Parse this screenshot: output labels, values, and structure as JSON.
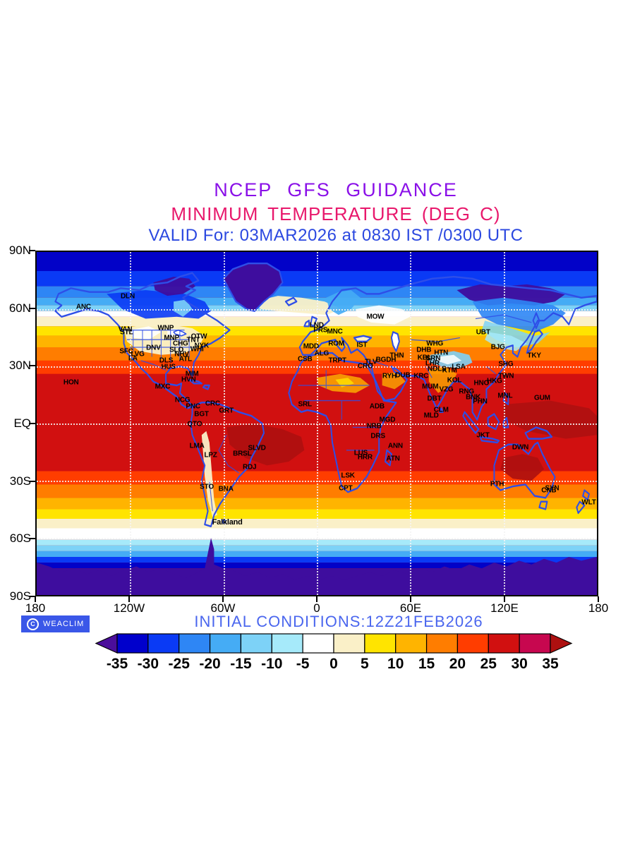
{
  "header": {
    "title": "NCEP GFS GUIDANCE",
    "subtitle": "MINIMUM TEMPERATURE (DEG C)",
    "valid_line": "VALID For: 03MAR2026 at 0830 IST /0300 UTC",
    "title_color": "#8A10E8",
    "subtitle_color": "#E8186C",
    "valid_color": "#2B48E0"
  },
  "map": {
    "lat_ticks": [
      {
        "label": "90N",
        "lat": 90
      },
      {
        "label": "60N",
        "lat": 60
      },
      {
        "label": "30N",
        "lat": 30
      },
      {
        "label": "EQ",
        "lat": 0
      },
      {
        "label": "30S",
        "lat": -30
      },
      {
        "label": "60S",
        "lat": -60
      },
      {
        "label": "90S",
        "lat": -90
      }
    ],
    "lon_ticks": [
      {
        "label": "180",
        "lon": -180
      },
      {
        "label": "120W",
        "lon": -120
      },
      {
        "label": "60W",
        "lon": -60
      },
      {
        "label": "0",
        "lon": 0
      },
      {
        "label": "60E",
        "lon": 60
      },
      {
        "label": "120E",
        "lon": 120
      },
      {
        "label": "180",
        "lon": 180
      }
    ],
    "grid": {
      "lats": [
        60,
        30,
        0,
        -30,
        -60
      ],
      "lons": [
        -120,
        -60,
        0,
        60,
        120
      ]
    },
    "cities": [
      {
        "code": "ANC",
        "lat": 61.2,
        "lon": -149.9
      },
      {
        "code": "DLN",
        "lat": 66.8,
        "lon": -121.5
      },
      {
        "code": "VAN",
        "lat": 49.3,
        "lon": -123.1
      },
      {
        "code": "STL",
        "lat": 47.6,
        "lon": -122.3
      },
      {
        "code": "WNP",
        "lat": 49.9,
        "lon": -97.1
      },
      {
        "code": "MNP",
        "lat": 45.0,
        "lon": -93.3
      },
      {
        "code": "CHG",
        "lat": 41.9,
        "lon": -87.6
      },
      {
        "code": "TNT",
        "lat": 43.7,
        "lon": -79.4
      },
      {
        "code": "OTW",
        "lat": 45.4,
        "lon": -75.7
      },
      {
        "code": "NYK",
        "lat": 40.7,
        "lon": -74.0
      },
      {
        "code": "DNV",
        "lat": 39.7,
        "lon": -105.0
      },
      {
        "code": "SLO",
        "lat": 38.6,
        "lon": -90.2
      },
      {
        "code": "SFC",
        "lat": 37.8,
        "lon": -122.4
      },
      {
        "code": "LVG",
        "lat": 36.2,
        "lon": -115.1
      },
      {
        "code": "LA",
        "lat": 34.1,
        "lon": -118.2
      },
      {
        "code": "DLS",
        "lat": 32.8,
        "lon": -96.8
      },
      {
        "code": "ATL",
        "lat": 33.7,
        "lon": -84.4
      },
      {
        "code": "NHV",
        "lat": 36.2,
        "lon": -86.8
      },
      {
        "code": "WHI",
        "lat": 38.9,
        "lon": -77.0
      },
      {
        "code": "HUS",
        "lat": 29.8,
        "lon": -95.4
      },
      {
        "code": "MIM",
        "lat": 25.8,
        "lon": -80.2
      },
      {
        "code": "HVN",
        "lat": 23.1,
        "lon": -82.4
      },
      {
        "code": "HON",
        "lat": 21.3,
        "lon": -157.9
      },
      {
        "code": "MXC",
        "lat": 19.4,
        "lon": -99.1
      },
      {
        "code": "NCG",
        "lat": 12.1,
        "lon": -86.3
      },
      {
        "code": "PNC",
        "lat": 9.0,
        "lon": -79.5
      },
      {
        "code": "CRC",
        "lat": 10.5,
        "lon": -66.9
      },
      {
        "code": "GRT",
        "lat": 6.8,
        "lon": -58.2
      },
      {
        "code": "BGT",
        "lat": 4.7,
        "lon": -74.1
      },
      {
        "code": "QTO",
        "lat": -0.2,
        "lon": -78.5
      },
      {
        "code": "LMA",
        "lat": -12.0,
        "lon": -77.0
      },
      {
        "code": "LPZ",
        "lat": -16.5,
        "lon": -68.2
      },
      {
        "code": "SLVD",
        "lat": -13.0,
        "lon": -38.5
      },
      {
        "code": "BRSL",
        "lat": -15.8,
        "lon": -47.9
      },
      {
        "code": "RDJ",
        "lat": -22.9,
        "lon": -43.2
      },
      {
        "code": "STO",
        "lat": -33.5,
        "lon": -70.7
      },
      {
        "code": "BNA",
        "lat": -34.6,
        "lon": -58.4
      },
      {
        "code": "LND",
        "lat": 51.5,
        "lon": -0.1
      },
      {
        "code": "PRS",
        "lat": 48.9,
        "lon": 2.4
      },
      {
        "code": "MNC",
        "lat": 48.1,
        "lon": 11.6
      },
      {
        "code": "ROM",
        "lat": 41.9,
        "lon": 12.5
      },
      {
        "code": "IST",
        "lat": 41.0,
        "lon": 29.0
      },
      {
        "code": "MOW",
        "lat": 55.8,
        "lon": 37.6
      },
      {
        "code": "MDD",
        "lat": 40.4,
        "lon": -3.7
      },
      {
        "code": "ALG",
        "lat": 36.8,
        "lon": 3.1
      },
      {
        "code": "CSB",
        "lat": 33.6,
        "lon": -7.6
      },
      {
        "code": "TRPT",
        "lat": 32.9,
        "lon": 13.2
      },
      {
        "code": "TLV",
        "lat": 32.1,
        "lon": 34.8
      },
      {
        "code": "CRO",
        "lat": 30.0,
        "lon": 31.2
      },
      {
        "code": "BGDH",
        "lat": 33.3,
        "lon": 44.4
      },
      {
        "code": "THN",
        "lat": 35.7,
        "lon": 51.4
      },
      {
        "code": "RYH",
        "lat": 24.7,
        "lon": 46.7
      },
      {
        "code": "DUB",
        "lat": 25.2,
        "lon": 55.3
      },
      {
        "code": "ADB",
        "lat": 9.0,
        "lon": 38.7
      },
      {
        "code": "MGD",
        "lat": 2.0,
        "lon": 45.3
      },
      {
        "code": "NRB",
        "lat": -1.3,
        "lon": 36.8
      },
      {
        "code": "DRS",
        "lat": -6.8,
        "lon": 39.3
      },
      {
        "code": "SRL",
        "lat": 9.9,
        "lon": -7.6
      },
      {
        "code": "LUS",
        "lat": -15.4,
        "lon": 28.3
      },
      {
        "code": "HRR",
        "lat": -17.8,
        "lon": 31.0
      },
      {
        "code": "ANN",
        "lat": -11.8,
        "lon": 50.5
      },
      {
        "code": "ATN",
        "lat": -18.5,
        "lon": 49.0
      },
      {
        "code": "LSK",
        "lat": -27.5,
        "lon": 20.0
      },
      {
        "code": "CPT",
        "lat": -34.0,
        "lon": 18.5
      },
      {
        "code": "DHB",
        "lat": 38.6,
        "lon": 68.8
      },
      {
        "code": "WHG",
        "lat": 41.9,
        "lon": 75.8
      },
      {
        "code": "HTN",
        "lat": 37.1,
        "lon": 79.9
      },
      {
        "code": "KBL",
        "lat": 34.5,
        "lon": 69.2
      },
      {
        "code": "SRN",
        "lat": 34.1,
        "lon": 74.8
      },
      {
        "code": "LHR",
        "lat": 31.5,
        "lon": 74.3
      },
      {
        "code": "NDLS",
        "lat": 28.6,
        "lon": 77.2
      },
      {
        "code": "KTM",
        "lat": 27.7,
        "lon": 85.3
      },
      {
        "code": "LSA",
        "lat": 29.7,
        "lon": 91.1
      },
      {
        "code": "KRC",
        "lat": 24.9,
        "lon": 67.0
      },
      {
        "code": "KOL",
        "lat": 22.6,
        "lon": 88.4
      },
      {
        "code": "MUM",
        "lat": 19.1,
        "lon": 72.9
      },
      {
        "code": "VZG",
        "lat": 17.7,
        "lon": 83.2
      },
      {
        "code": "DBT",
        "lat": 12.8,
        "lon": 75.5
      },
      {
        "code": "CLM",
        "lat": 6.9,
        "lon": 79.9
      },
      {
        "code": "MLD",
        "lat": 4.2,
        "lon": 73.5
      },
      {
        "code": "UBT",
        "lat": 47.9,
        "lon": 106.9
      },
      {
        "code": "BJG",
        "lat": 39.9,
        "lon": 116.4
      },
      {
        "code": "TKY",
        "lat": 35.7,
        "lon": 139.7
      },
      {
        "code": "SHG",
        "lat": 31.2,
        "lon": 121.5
      },
      {
        "code": "TWN",
        "lat": 25.0,
        "lon": 121.6
      },
      {
        "code": "HKG",
        "lat": 22.3,
        "lon": 114.2
      },
      {
        "code": "HNO",
        "lat": 21.0,
        "lon": 105.8
      },
      {
        "code": "RNG",
        "lat": 16.8,
        "lon": 96.2
      },
      {
        "code": "BNK",
        "lat": 13.8,
        "lon": 100.5
      },
      {
        "code": "PHN",
        "lat": 11.6,
        "lon": 104.9
      },
      {
        "code": "MNL",
        "lat": 14.6,
        "lon": 121.0
      },
      {
        "code": "GUM",
        "lat": 13.5,
        "lon": 144.8
      },
      {
        "code": "JKT",
        "lat": -6.2,
        "lon": 106.8
      },
      {
        "code": "DWN",
        "lat": -12.5,
        "lon": 130.8
      },
      {
        "code": "PTH",
        "lat": -32.0,
        "lon": 115.9
      },
      {
        "code": "SYN",
        "lat": -33.9,
        "lon": 151.2
      },
      {
        "code": "CNB",
        "lat": -35.3,
        "lon": 149.1
      },
      {
        "code": "WLT",
        "lat": -41.3,
        "lon": 174.8
      }
    ],
    "annotations": [
      {
        "text": "Falkland",
        "lat": -51.7,
        "lon": -57.5
      }
    ]
  },
  "footer": {
    "badge": {
      "copyright_symbol": "C",
      "label": "WEACLIM",
      "bg": "#3A57E8"
    },
    "initial_conditions": "INITIAL CONDITIONS:12Z21FEB2026",
    "initial_color": "#4A66EE"
  },
  "colorbar": {
    "tick_labels": [
      "-35",
      "-30",
      "-25",
      "-20",
      "-15",
      "-10",
      "-5",
      "0",
      "5",
      "10",
      "15",
      "20",
      "25",
      "30",
      "35"
    ],
    "cell_colors": [
      "#0000CC",
      "#0A3AF5",
      "#2E86F5",
      "#45ACF5",
      "#7DD2F7",
      "#A6EAFA",
      "#FFFFFF",
      "#FAF0C8",
      "#FFE400",
      "#FFB400",
      "#FF7D00",
      "#FF3D00",
      "#D11010",
      "#C7074F"
    ],
    "arrow_left_color": "#4B0E9B",
    "arrow_right_color": "#AD1010"
  },
  "chart_data": {
    "type": "heatmap",
    "title": "NCEP GFS GUIDANCE",
    "subtitle": "MINIMUM TEMPERATURE (DEG C)",
    "valid": "VALID For: 03MAR2026 at 0830 IST /0300 UTC",
    "initial_conditions": "INITIAL CONDITIONS:12Z21FEB2026",
    "units": "deg C",
    "levels": [
      -35,
      -30,
      -25,
      -20,
      -15,
      -10,
      -5,
      0,
      5,
      10,
      15,
      20,
      25,
      30,
      35
    ],
    "palette": [
      "#4B0E9B",
      "#0000CC",
      "#0A3AF5",
      "#2E86F5",
      "#45ACF5",
      "#7DD2F7",
      "#A6EAFA",
      "#FFFFFF",
      "#FAF0C8",
      "#FFE400",
      "#FFB400",
      "#FF7D00",
      "#FF3D00",
      "#D11010",
      "#C7074F",
      "#AD1010"
    ],
    "x_axis": {
      "tick_labels": [
        "180",
        "120W",
        "60W",
        "0",
        "60E",
        "120E",
        "180"
      ],
      "range_deg": [
        -180,
        180
      ]
    },
    "y_axis": {
      "tick_labels": [
        "90N",
        "60N",
        "30N",
        "EQ",
        "30S",
        "60S",
        "90S"
      ],
      "range_deg": [
        -90,
        90
      ]
    },
    "grid": "dotted white at 30-degree intervals",
    "legend_position": "bottom horizontal colorbar with out-of-range arrows",
    "zonal_bands": [
      {
        "lat_from": 90,
        "lat_to": 80,
        "color": "#0202C8",
        "value": "-35 to -30"
      },
      {
        "lat_from": 80,
        "lat_to": 72,
        "color": "#0A3AF5",
        "value": "-30 to -25"
      },
      {
        "lat_from": 72,
        "lat_to": 66,
        "color": "#2E86F5",
        "value": "-25 to -20"
      },
      {
        "lat_from": 66,
        "lat_to": 62,
        "color": "#45ACF5",
        "value": "-20 to -15"
      },
      {
        "lat_from": 62,
        "lat_to": 59,
        "color": "#7DD2F7",
        "value": "-15 to -10"
      },
      {
        "lat_from": 59,
        "lat_to": 56,
        "color": "#FFFFFF",
        "value": "-5 to 0"
      },
      {
        "lat_from": 56,
        "lat_to": 51,
        "color": "#FAF0C8",
        "value": "0 to 5"
      },
      {
        "lat_from": 51,
        "lat_to": 46,
        "color": "#FFE400",
        "value": "5 to 10"
      },
      {
        "lat_from": 46,
        "lat_to": 40,
        "color": "#FFB400",
        "value": "10 to 15"
      },
      {
        "lat_from": 40,
        "lat_to": 33,
        "color": "#FF7D00",
        "value": "15 to 20"
      },
      {
        "lat_from": 33,
        "lat_to": 26,
        "color": "#FF3D00",
        "value": "20 to 25"
      },
      {
        "lat_from": 26,
        "lat_to": -25,
        "color": "#D11010",
        "value": "25 to 30"
      },
      {
        "lat_from": -25,
        "lat_to": -32,
        "color": "#FF3D00",
        "value": "20 to 25"
      },
      {
        "lat_from": -32,
        "lat_to": -39,
        "color": "#FF7D00",
        "value": "15 to 20"
      },
      {
        "lat_from": -39,
        "lat_to": -45,
        "color": "#FFB400",
        "value": "10 to 15"
      },
      {
        "lat_from": -45,
        "lat_to": -50,
        "color": "#FFE400",
        "value": "5 to 10"
      },
      {
        "lat_from": -50,
        "lat_to": -55,
        "color": "#FAF0C8",
        "value": "0 to 5"
      },
      {
        "lat_from": -55,
        "lat_to": -61,
        "color": "#FFFFFF",
        "value": "-5 to 0"
      },
      {
        "lat_from": -61,
        "lat_to": -64,
        "color": "#A6EAFA",
        "value": "-10 to -5"
      },
      {
        "lat_from": -64,
        "lat_to": -67,
        "color": "#7DD2F7",
        "value": "-15 to -10"
      },
      {
        "lat_from": -67,
        "lat_to": -70,
        "color": "#45ACF5",
        "value": "-20 to -15"
      },
      {
        "lat_from": -70,
        "lat_to": -73,
        "color": "#0A3AF5",
        "value": "-25 to -30"
      },
      {
        "lat_from": -73,
        "lat_to": -76,
        "color": "#0202C8",
        "value": "-30 to -35"
      },
      {
        "lat_from": -76,
        "lat_to": -90,
        "color": "#3E0D9E",
        "value": "below -35"
      }
    ]
  }
}
